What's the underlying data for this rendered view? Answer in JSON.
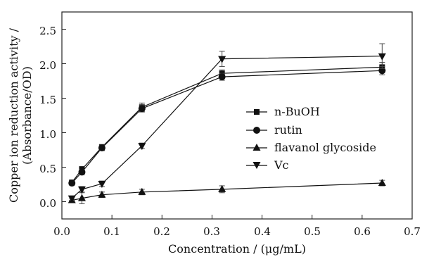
{
  "chart_data": {
    "type": "line",
    "xlabel": "Concentration / (μg/mL)",
    "ylabel_line1": "Copper ion reduction activity /",
    "ylabel_line2": "(Absorbance/OD)",
    "xlim": [
      0,
      0.7
    ],
    "ylim": [
      -0.25,
      2.75
    ],
    "x_ticks": [
      "0.0",
      "0.1",
      "0.2",
      "0.3",
      "0.4",
      "0.5",
      "0.6",
      "0.7"
    ],
    "y_ticks": [
      "0.0",
      "0.5",
      "1.0",
      "1.5",
      "2.0",
      "2.5"
    ],
    "grid": false,
    "legend_position": "center-right",
    "x": [
      0.02,
      0.04,
      0.08,
      0.16,
      0.32,
      0.64
    ],
    "series": [
      {
        "name": "n-BuOH",
        "marker": "square",
        "values": [
          0.28,
          0.47,
          0.79,
          1.37,
          1.86,
          1.95
        ],
        "errors": [
          0.03,
          0.04,
          0.04,
          0.06,
          0.05,
          0.07
        ]
      },
      {
        "name": "rutin",
        "marker": "circle",
        "values": [
          0.27,
          0.43,
          0.78,
          1.35,
          1.81,
          1.9
        ],
        "errors": [
          0.03,
          0.04,
          0.04,
          0.05,
          0.05,
          0.06
        ]
      },
      {
        "name": "flavanol glycoside",
        "marker": "triangle-up",
        "values": [
          0.02,
          0.05,
          0.1,
          0.14,
          0.18,
          0.27
        ],
        "errors": [
          0.03,
          0.08,
          0.04,
          0.04,
          0.05,
          0.04
        ]
      },
      {
        "name": "Vc",
        "marker": "triangle-down",
        "values": [
          0.05,
          0.18,
          0.26,
          0.81,
          2.07,
          2.11
        ],
        "errors": [
          0.03,
          0.04,
          0.04,
          0.04,
          0.11,
          0.18
        ]
      }
    ]
  }
}
